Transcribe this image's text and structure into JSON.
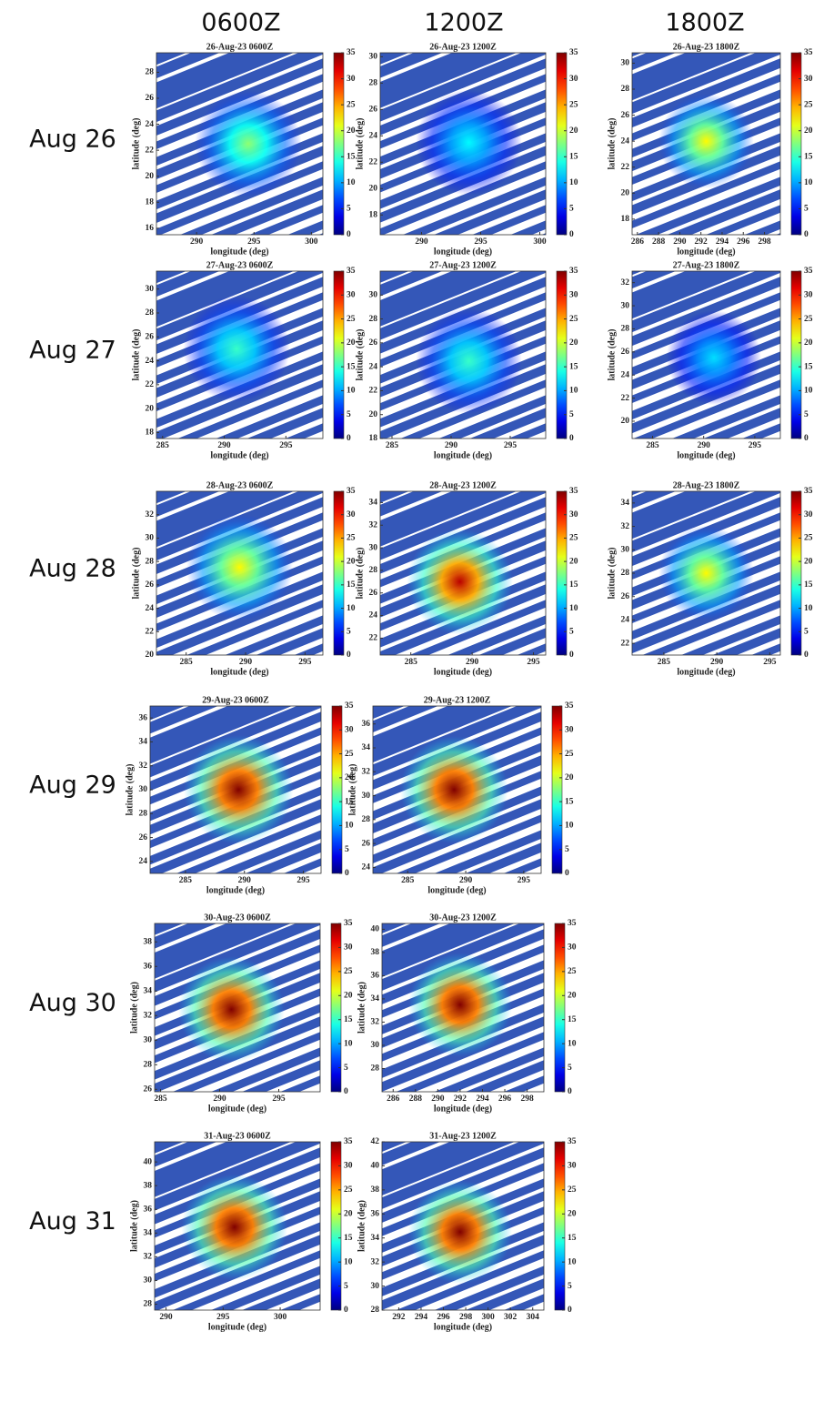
{
  "chart_data": {
    "type": "heatmap-grid",
    "columns": [
      "0600Z",
      "1200Z",
      "1800Z"
    ],
    "axis_labels": {
      "x": "longitude (deg)",
      "y": "latitude (deg)"
    },
    "colorbar": {
      "lim": [
        0,
        35
      ],
      "ticks": [
        0,
        5,
        10,
        15,
        20,
        25,
        30,
        35
      ]
    },
    "rows": [
      {
        "label": "Aug 26",
        "panels": [
          {
            "title": "26-Aug-23 0600Z",
            "xlim": [
              286.5,
              301
            ],
            "xticks": [
              290,
              295,
              300
            ],
            "ylim": [
              15.5,
              29.5
            ],
            "yticks": [
              16,
              18,
              20,
              22,
              24,
              26,
              28
            ],
            "center": [
              294.5,
              22.5
            ],
            "peak": 18
          },
          {
            "title": "26-Aug-23 1200Z",
            "xlim": [
              286.5,
              300.5
            ],
            "xticks": [
              290,
              295,
              300
            ],
            "ylim": [
              16.5,
              30.3
            ],
            "yticks": [
              18,
              20,
              22,
              24,
              26,
              28,
              30
            ],
            "center": [
              294,
              23.5
            ],
            "peak": 13
          },
          {
            "title": "26-Aug-23 1800Z",
            "xlim": [
              285.5,
              299.5
            ],
            "xticks": [
              286,
              288,
              290,
              292,
              294,
              296,
              298
            ],
            "ylim": [
              16.8,
              30.8
            ],
            "yticks": [
              18,
              20,
              22,
              24,
              26,
              28,
              30
            ],
            "center": [
              292.5,
              24
            ],
            "peak": 22
          }
        ]
      },
      {
        "label": "Aug 27",
        "panels": [
          {
            "title": "27-Aug-23 0600Z",
            "xlim": [
              284.5,
              298
            ],
            "xticks": [
              285,
              290,
              295
            ],
            "ylim": [
              17.5,
              31.5
            ],
            "yticks": [
              18,
              20,
              22,
              24,
              26,
              28,
              30
            ],
            "center": [
              291,
              25
            ],
            "peak": 15
          },
          {
            "title": "27-Aug-23 1200Z",
            "xlim": [
              284,
              298
            ],
            "xticks": [
              285,
              290,
              295
            ],
            "ylim": [
              18,
              32
            ],
            "yticks": [
              18,
              20,
              22,
              24,
              26,
              28,
              30
            ],
            "center": [
              291.5,
              24.5
            ],
            "peak": 15
          },
          {
            "title": "27-Aug-23 1800Z",
            "xlim": [
              283,
              297.5
            ],
            "xticks": [
              285,
              290,
              295
            ],
            "ylim": [
              18.5,
              33
            ],
            "yticks": [
              20,
              22,
              24,
              26,
              28,
              30,
              32
            ],
            "center": [
              291,
              25.5
            ],
            "peak": 12
          }
        ]
      },
      {
        "label": "Aug 28",
        "panels": [
          {
            "title": "28-Aug-23 0600Z",
            "xlim": [
              282.5,
              296.5
            ],
            "xticks": [
              285,
              290,
              295
            ],
            "ylim": [
              20,
              34
            ],
            "yticks": [
              20,
              22,
              24,
              26,
              28,
              30,
              32
            ],
            "center": [
              289.5,
              27.5
            ],
            "peak": 22
          },
          {
            "title": "28-Aug-23 1200Z",
            "xlim": [
              282.5,
              296
            ],
            "xticks": [
              285,
              290,
              295
            ],
            "ylim": [
              20.5,
              35
            ],
            "yticks": [
              22,
              24,
              26,
              28,
              30,
              32,
              34
            ],
            "center": [
              289,
              27
            ],
            "peak": 33
          },
          {
            "title": "28-Aug-23 1800Z",
            "xlim": [
              282,
              296
            ],
            "xticks": [
              285,
              290,
              295
            ],
            "ylim": [
              21,
              35
            ],
            "yticks": [
              22,
              24,
              26,
              28,
              30,
              32,
              34
            ],
            "center": [
              289,
              28
            ],
            "peak": 22
          }
        ]
      },
      {
        "label": "Aug 29",
        "panels": [
          {
            "title": "29-Aug-23 0600Z",
            "xlim": [
              282,
              296.5
            ],
            "xticks": [
              285,
              290,
              295
            ],
            "ylim": [
              23,
              37
            ],
            "yticks": [
              24,
              26,
              28,
              30,
              32,
              34,
              36
            ],
            "center": [
              289.5,
              30
            ],
            "peak": 35
          },
          {
            "title": "29-Aug-23 1200Z",
            "xlim": [
              282,
              296.5
            ],
            "xticks": [
              285,
              290,
              295
            ],
            "ylim": [
              23.5,
              37.5
            ],
            "yticks": [
              24,
              26,
              28,
              30,
              32,
              34,
              36
            ],
            "center": [
              289,
              30.5
            ],
            "peak": 35
          }
        ]
      },
      {
        "label": "Aug 30",
        "panels": [
          {
            "title": "30-Aug-23 0600Z",
            "xlim": [
              284.5,
              298.5
            ],
            "xticks": [
              285,
              290,
              295
            ],
            "ylim": [
              25.8,
              39.5
            ],
            "yticks": [
              26,
              28,
              30,
              32,
              34,
              36,
              38
            ],
            "center": [
              291,
              32.5
            ],
            "peak": 35
          },
          {
            "title": "30-Aug-23 1200Z",
            "xlim": [
              285,
              299.5
            ],
            "xticks": [
              286,
              288,
              290,
              292,
              294,
              296,
              298
            ],
            "ylim": [
              26,
              40.5
            ],
            "yticks": [
              28,
              30,
              32,
              34,
              36,
              38,
              40
            ],
            "center": [
              292,
              33.5
            ],
            "peak": 35
          }
        ]
      },
      {
        "label": "Aug 31",
        "panels": [
          {
            "title": "31-Aug-23 0600Z",
            "xlim": [
              289,
              303.5
            ],
            "xticks": [
              290,
              295,
              300
            ],
            "ylim": [
              27.5,
              41.7
            ],
            "yticks": [
              28,
              30,
              32,
              34,
              36,
              38,
              40
            ],
            "center": [
              296,
              34.5
            ],
            "peak": 35
          },
          {
            "title": "31-Aug-23 1200Z",
            "xlim": [
              290.5,
              305
            ],
            "xticks": [
              292,
              294,
              296,
              298,
              300,
              302,
              304
            ],
            "ylim": [
              28,
              42
            ],
            "yticks": [
              28,
              30,
              32,
              34,
              36,
              38,
              40,
              42
            ],
            "center": [
              297.5,
              34.5
            ],
            "peak": 35
          }
        ]
      }
    ]
  }
}
